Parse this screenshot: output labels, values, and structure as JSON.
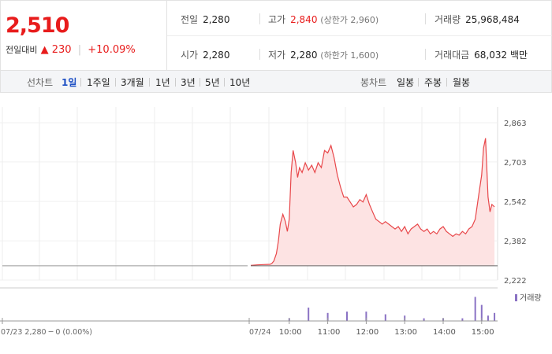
{
  "quote": {
    "price": "2,510",
    "change_label": "전일대비",
    "change_arrow": "▲",
    "change_amount": "230",
    "change_sep": "|",
    "change_rate": "+10.09%"
  },
  "stats": {
    "prev_close": {
      "label": "전일",
      "value": "2,280"
    },
    "open": {
      "label": "시가",
      "value": "2,280"
    },
    "high": {
      "label": "고가",
      "value": "2,840",
      "paren": "(상한가 2,960)"
    },
    "low": {
      "label": "저가",
      "value": "2,280",
      "paren": "(하한가 1,600)"
    },
    "volume": {
      "label": "거래량",
      "value": "25,968,484"
    },
    "amount": {
      "label": "거래대금",
      "value": "68,032",
      "unit": "백만"
    }
  },
  "tabs": {
    "line_title": "선차트",
    "line_items": [
      "1일",
      "1주일",
      "3개월",
      "1년",
      "3년",
      "5년",
      "10년"
    ],
    "active": "1일",
    "candle_title": "봉차트",
    "candle_items": [
      "일봉",
      "주봉",
      "월봉"
    ]
  },
  "colors": {
    "up": "#e81c1c",
    "active_tab": "#1d4fc4",
    "line": "#e8474a",
    "fill": "#fde3e3",
    "volume": "#8a72c4",
    "prev_day_line": "#999999"
  },
  "chart_data": {
    "type": "line",
    "prev_day_label": "07/23  2,280 ─ 0 (0.00%)",
    "prev_day_date": "07/23",
    "current_date": "07/24",
    "x_tick_labels": [
      "10:00",
      "11:00",
      "12:00",
      "13:00",
      "14:00",
      "15:00"
    ],
    "y_tick_labels": [
      "2,863",
      "2,703",
      "2,542",
      "2,382",
      "2,222"
    ],
    "ylim": [
      2222,
      2863
    ],
    "volume_legend": "거래량",
    "series": [
      {
        "x": [
          "09:00",
          "09:10",
          "09:20",
          "09:30",
          "09:33",
          "09:36",
          "09:40",
          "09:43",
          "09:46",
          "09:50",
          "09:54",
          "09:57",
          "10:00",
          "10:03",
          "10:06",
          "10:10",
          "10:13",
          "10:16",
          "10:20",
          "10:25",
          "10:30",
          "10:35",
          "10:40",
          "10:45",
          "10:50",
          "10:55",
          "11:00",
          "11:05",
          "11:10",
          "11:15",
          "11:20",
          "11:25",
          "11:30",
          "11:35",
          "11:40",
          "11:45",
          "11:50",
          "11:55",
          "12:00",
          "12:05",
          "12:10",
          "12:15",
          "12:20",
          "12:25",
          "12:30",
          "12:35",
          "12:40",
          "12:45",
          "12:50",
          "12:55",
          "13:00",
          "13:05",
          "13:10",
          "13:15",
          "13:20",
          "13:25",
          "13:30",
          "13:35",
          "13:40",
          "13:45",
          "13:50",
          "13:55",
          "14:00",
          "14:05",
          "14:10",
          "14:15",
          "14:20",
          "14:25",
          "14:30",
          "14:35",
          "14:40",
          "14:45",
          "14:50",
          "14:55",
          "15:00",
          "15:03",
          "15:06",
          "15:10",
          "15:13",
          "15:16",
          "15:20"
        ],
        "y": [
          2282,
          2284,
          2285,
          2286,
          2290,
          2300,
          2330,
          2380,
          2450,
          2490,
          2460,
          2420,
          2470,
          2660,
          2750,
          2700,
          2640,
          2680,
          2660,
          2700,
          2670,
          2690,
          2660,
          2700,
          2680,
          2750,
          2740,
          2770,
          2720,
          2650,
          2600,
          2560,
          2560,
          2540,
          2520,
          2530,
          2550,
          2540,
          2570,
          2530,
          2500,
          2470,
          2460,
          2450,
          2460,
          2450,
          2440,
          2430,
          2440,
          2420,
          2440,
          2410,
          2430,
          2440,
          2450,
          2430,
          2420,
          2430,
          2410,
          2420,
          2410,
          2430,
          2440,
          2420,
          2410,
          2400,
          2410,
          2405,
          2420,
          2410,
          2430,
          2440,
          2470,
          2560,
          2650,
          2760,
          2800,
          2560,
          2500,
          2530,
          2520
        ]
      }
    ],
    "volume": {
      "x": [
        "10:00",
        "10:30",
        "11:00",
        "11:30",
        "12:00",
        "12:30",
        "13:00",
        "13:30",
        "14:00",
        "14:30",
        "14:50",
        "15:00",
        "15:10",
        "15:20"
      ],
      "relative": [
        0.1,
        0.5,
        0.3,
        0.35,
        0.35,
        0.25,
        0.2,
        0.1,
        0.1,
        0.1,
        0.9,
        0.6,
        0.2,
        0.3
      ]
    }
  }
}
